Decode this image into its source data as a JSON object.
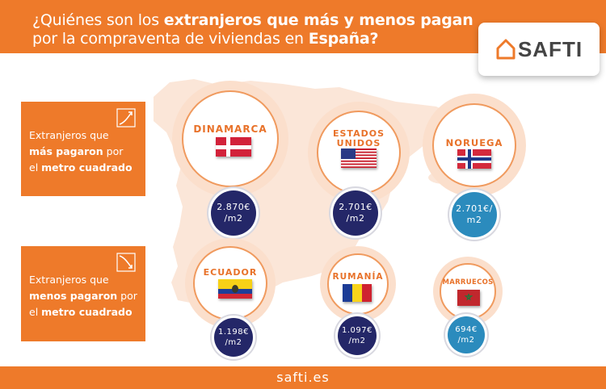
{
  "title": {
    "line1_pre": "¿Quiénes son los ",
    "line1_bold": "extranjeros que más y menos pagan",
    "line2_pre": "por la compraventa de viviendas en ",
    "line2_bold": "España?"
  },
  "logo": {
    "text": "SAFTI"
  },
  "side_top": {
    "line1": "Extranjeros que",
    "line2_bold": "más pagaron",
    "line2_rest": " por",
    "line3_pre": "el ",
    "line3_bold": "metro cuadrado"
  },
  "side_bottom": {
    "line1": "Extranjeros que",
    "line2_bold": "menos pagaron",
    "line2_rest": " por",
    "line3_pre": "el ",
    "line3_bold": "metro cuadrado"
  },
  "countries": [
    {
      "name": "DINAMARCA",
      "price_line1": "2.870€",
      "price_line2": "/m2",
      "color": "#242768"
    },
    {
      "name_line1": "ESTADOS",
      "name_line2": "UNIDOS",
      "price_line1": "2.701€",
      "price_line2": "/m2",
      "color": "#242768"
    },
    {
      "name": "NORUEGA",
      "price_line1": "2.701€/",
      "price_line2": "m2",
      "color": "#2b8bbd"
    },
    {
      "name": "ECUADOR",
      "price_line1": "1.198€",
      "price_line2": "/m2",
      "color": "#242768"
    },
    {
      "name": "RUMANÍA",
      "price_line1": "1.097€",
      "price_line2": "/m2",
      "color": "#242768"
    },
    {
      "name": "MARRUECOS",
      "price_line1": "694€",
      "price_line2": "/m2",
      "color": "#2b8bbd"
    }
  ],
  "footer": {
    "text": "safti.es"
  },
  "colors": {
    "orange": "#ee7a2a",
    "navy": "#242768",
    "teal": "#2b8bbd",
    "map": "#fbe6d8"
  }
}
